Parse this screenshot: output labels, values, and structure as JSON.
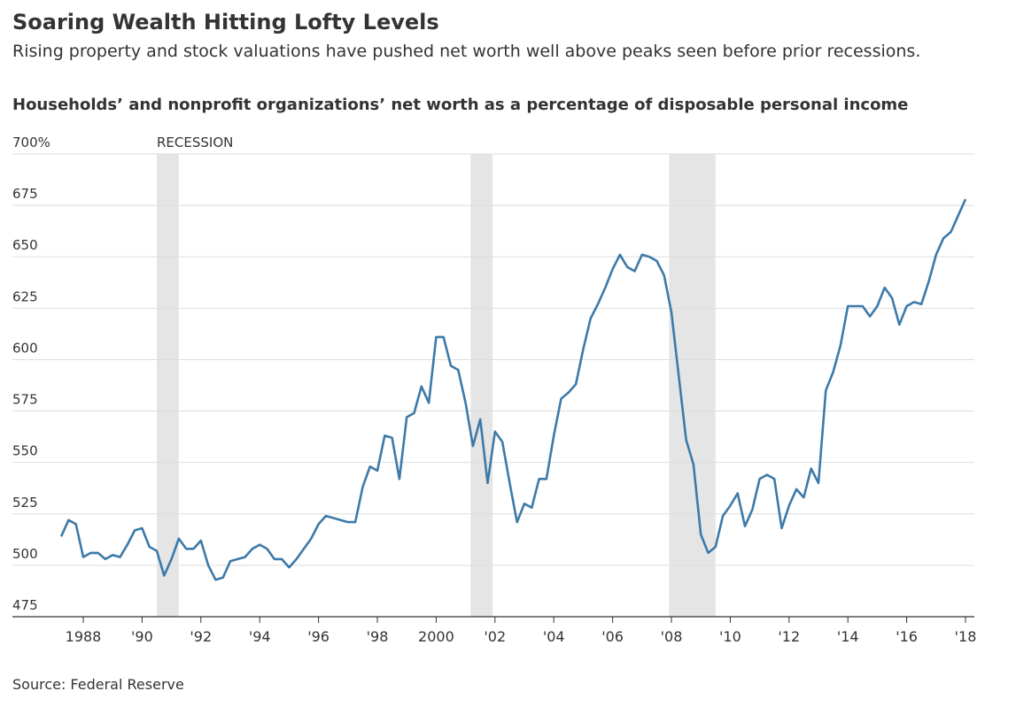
{
  "chart_data": {
    "type": "line",
    "title": "Soaring Wealth Hitting Lofty Levels",
    "subtitle": "Rising property and stock valuations have pushed net worth well above peaks seen before prior recessions.",
    "chart_title": "Households’ and nonprofit organizations’ net worth as a percentage of disposable personal income",
    "source": "Source: Federal Reserve",
    "recession_label": "RECESSION",
    "recessions": [
      {
        "start": 1990.5,
        "end": 1991.25
      },
      {
        "start": 2001.17,
        "end": 2001.92
      },
      {
        "start": 2007.92,
        "end": 2009.5
      }
    ],
    "x": [
      1987.25,
      1987.5,
      1987.75,
      1988,
      1988.25,
      1988.5,
      1988.75,
      1989,
      1989.25,
      1989.5,
      1989.75,
      1990,
      1990.25,
      1990.5,
      1990.75,
      1991,
      1991.25,
      1991.5,
      1991.75,
      1992,
      1992.25,
      1992.5,
      1992.75,
      1993,
      1993.25,
      1993.5,
      1993.75,
      1994,
      1994.25,
      1994.5,
      1994.75,
      1995,
      1995.25,
      1995.5,
      1995.75,
      1996,
      1996.25,
      1996.5,
      1996.75,
      1997,
      1997.25,
      1997.5,
      1997.75,
      1998,
      1998.25,
      1998.5,
      1998.75,
      1999,
      1999.25,
      1999.5,
      1999.75,
      2000,
      2000.25,
      2000.5,
      2000.75,
      2001,
      2001.25,
      2001.5,
      2001.75,
      2002,
      2002.25,
      2002.5,
      2002.75,
      2003,
      2003.25,
      2003.5,
      2003.75,
      2004,
      2004.25,
      2004.5,
      2004.75,
      2005,
      2005.25,
      2005.5,
      2005.75,
      2006,
      2006.25,
      2006.5,
      2006.75,
      2007,
      2007.25,
      2007.5,
      2007.75,
      2008,
      2008.25,
      2008.5,
      2008.75,
      2009,
      2009.25,
      2009.5,
      2009.75,
      2010,
      2010.25,
      2010.5,
      2010.75,
      2011,
      2011.25,
      2011.5,
      2011.75,
      2012,
      2012.25,
      2012.5,
      2012.75,
      2013,
      2013.25,
      2013.5,
      2013.75,
      2014,
      2014.25,
      2014.5,
      2014.75,
      2015,
      2015.25,
      2015.5,
      2015.75,
      2016,
      2016.25,
      2016.5,
      2016.75,
      2017,
      2017.25,
      2017.5,
      2017.75,
      2018
    ],
    "series": [
      {
        "name": "Net worth",
        "color": "#3d7aa8",
        "values": [
          514,
          522,
          520,
          504,
          506,
          506,
          503,
          505,
          504,
          510,
          517,
          518,
          509,
          507,
          495,
          503,
          513,
          508,
          508,
          512,
          500,
          493,
          494,
          502,
          503,
          504,
          508,
          510,
          508,
          503,
          503,
          499,
          503,
          508,
          513,
          520,
          524,
          523,
          522,
          521,
          521,
          538,
          548,
          546,
          563,
          562,
          542,
          572,
          574,
          587,
          579,
          611,
          611,
          597,
          595,
          579,
          558,
          571,
          540,
          565,
          560,
          540,
          521,
          530,
          528,
          542,
          542,
          563,
          581,
          584,
          588,
          605,
          620,
          627,
          635,
          644,
          651,
          645,
          643,
          651,
          650,
          648,
          641,
          623,
          592,
          561,
          549,
          515,
          506,
          509,
          524,
          529,
          535,
          519,
          527,
          542,
          544,
          542,
          518,
          529,
          537,
          533,
          547,
          540,
          585,
          594,
          607,
          626,
          626,
          626,
          621,
          626,
          635,
          630,
          617,
          626,
          628,
          627,
          638,
          651,
          659,
          662,
          670,
          678
        ]
      }
    ],
    "xlim": [
      1987,
      2018.25
    ],
    "xticks": [
      {
        "value": 1988,
        "label": "1988"
      },
      {
        "value": 1990,
        "label": "'90"
      },
      {
        "value": 1992,
        "label": "'92"
      },
      {
        "value": 1994,
        "label": "'94"
      },
      {
        "value": 1996,
        "label": "'96"
      },
      {
        "value": 1998,
        "label": "'98"
      },
      {
        "value": 2000,
        "label": "2000"
      },
      {
        "value": 2002,
        "label": "'02"
      },
      {
        "value": 2004,
        "label": "'04"
      },
      {
        "value": 2006,
        "label": "'06"
      },
      {
        "value": 2008,
        "label": "'08"
      },
      {
        "value": 2010,
        "label": "'10"
      },
      {
        "value": 2012,
        "label": "'12"
      },
      {
        "value": 2014,
        "label": "'14"
      },
      {
        "value": 2016,
        "label": "'16"
      },
      {
        "value": 2018,
        "label": "'18"
      }
    ],
    "ylim": [
      475,
      700
    ],
    "yticks": [
      475,
      500,
      525,
      550,
      575,
      600,
      625,
      650,
      675,
      {
        "value": 700,
        "label": "700%"
      }
    ],
    "grid": true
  }
}
